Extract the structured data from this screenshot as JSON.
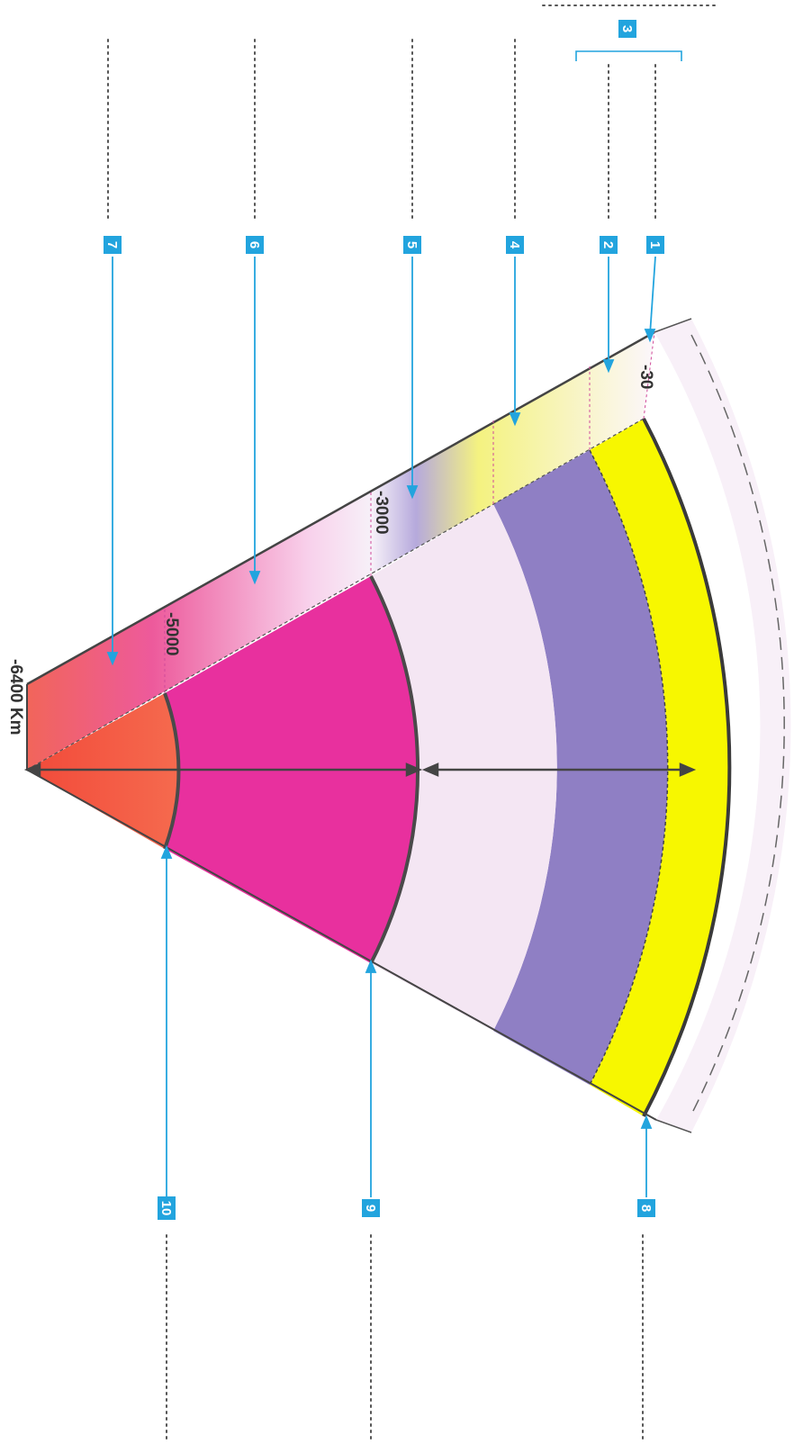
{
  "diagram": {
    "depth_labels": {
      "d30": "-30",
      "d3000": "-3000",
      "d5000": "-5000",
      "d6400": "-6400 Km"
    },
    "callouts": {
      "n1": "1",
      "n2": "2",
      "n3": "3",
      "n4": "4",
      "n5": "5",
      "n6": "6",
      "n7": "7",
      "n8": "8",
      "n9": "9",
      "n10": "10"
    },
    "colors": {
      "crust": "#fbf4fa",
      "lithosphere_yellow": "#f7f700",
      "asthenosphere_purple": "#8f7fc4",
      "lower_mantle": "#f3e4f2",
      "outer_core": "#e8309e",
      "inner_core": "#f2553a",
      "label_blue": "#22a4de",
      "line_dark": "#4a4a4a"
    }
  }
}
